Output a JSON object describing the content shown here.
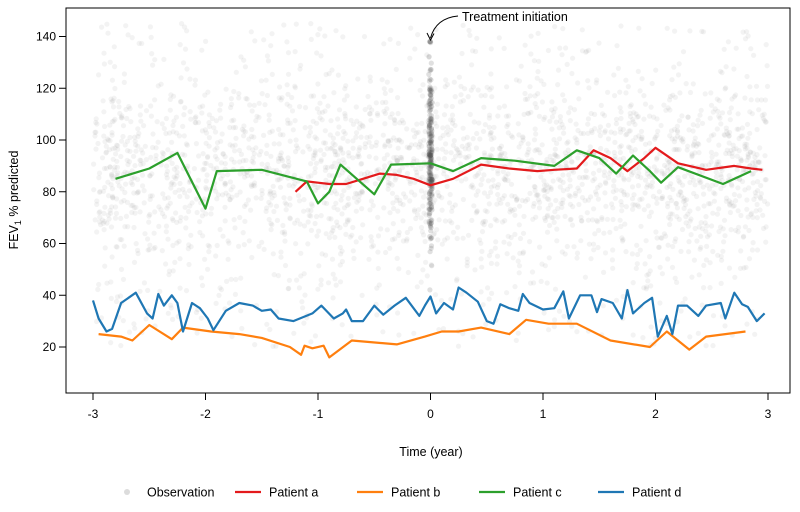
{
  "chart_data": {
    "type": "line",
    "xlabel": "Time (year)",
    "ylabel_main": "FEV",
    "ylabel_sub": "1",
    "ylabel_rest": " % predicted",
    "xlim": [
      -3.25,
      3.05
    ],
    "ylim": [
      8,
      150
    ],
    "x_ticks": [
      -3,
      -2,
      -1,
      0,
      1,
      2,
      3
    ],
    "x_tick_labels": [
      "-3",
      "-2",
      "-1",
      "0",
      "1",
      "2",
      "3"
    ],
    "y_ticks": [
      20,
      40,
      60,
      80,
      100,
      120,
      140
    ],
    "y_tick_labels": [
      "20",
      "40",
      "60",
      "80",
      "100",
      "120",
      "140"
    ],
    "annotation": {
      "text": "Treatment initiation",
      "x": 0,
      "y": 142
    },
    "observation": {
      "name": "Observation",
      "color": "#9a9a9a",
      "description_range": {
        "x": [
          -3,
          3
        ],
        "y": [
          12,
          145
        ]
      }
    },
    "series": [
      {
        "name": "Patient a",
        "color": "#e31a1c",
        "x": [
          -1.2,
          -1.1,
          -1.0,
          -0.9,
          -0.75,
          -0.6,
          -0.45,
          -0.3,
          -0.15,
          0.0,
          0.2,
          0.45,
          0.7,
          0.95,
          1.1,
          1.3,
          1.45,
          1.6,
          1.75,
          1.9,
          2.0,
          2.2,
          2.45,
          2.7,
          2.85,
          2.95
        ],
        "y": [
          80,
          84,
          83.5,
          83,
          83,
          85,
          87,
          86.5,
          85,
          82.5,
          85,
          90.5,
          89,
          88,
          88.5,
          89,
          96,
          93,
          88,
          93,
          97,
          91,
          88.5,
          90,
          89,
          88.5
        ]
      },
      {
        "name": "Patient b",
        "color": "#ff7f0e",
        "x": [
          -2.95,
          -2.75,
          -2.65,
          -2.5,
          -2.3,
          -2.2,
          -1.95,
          -1.7,
          -1.5,
          -1.25,
          -1.15,
          -1.12,
          -1.05,
          -0.95,
          -0.9,
          -0.7,
          -0.3,
          -0.05,
          0.1,
          0.25,
          0.45,
          0.7,
          0.85,
          1.05,
          1.3,
          1.6,
          1.95,
          2.1,
          2.3,
          2.45,
          2.8
        ],
        "y": [
          25,
          24,
          22.5,
          28.5,
          23,
          27.5,
          26,
          25,
          23.5,
          20,
          17,
          20.5,
          19.5,
          20.5,
          16,
          22.5,
          21,
          24,
          26,
          26,
          27.5,
          25,
          30.5,
          29,
          29,
          22.5,
          20,
          26,
          19,
          24,
          26
        ]
      },
      {
        "name": "Patient c",
        "color": "#2ca02c",
        "x": [
          -2.8,
          -2.5,
          -2.25,
          -2.0,
          -1.9,
          -1.5,
          -1.1,
          -1.0,
          -0.9,
          -0.8,
          -0.5,
          -0.35,
          0.0,
          0.2,
          0.45,
          0.75,
          1.1,
          1.3,
          1.5,
          1.65,
          1.8,
          1.95,
          2.05,
          2.2,
          2.6,
          2.85
        ],
        "y": [
          85,
          89,
          95,
          73.5,
          88,
          88.5,
          84,
          75.5,
          80,
          90.5,
          79,
          90.5,
          91,
          88,
          93,
          92,
          90,
          96,
          93,
          87,
          94,
          88,
          83.5,
          89.5,
          83,
          88
        ]
      },
      {
        "name": "Patient d",
        "color": "#1f77b4",
        "x": [
          -3.0,
          -2.95,
          -2.88,
          -2.83,
          -2.75,
          -2.62,
          -2.52,
          -2.47,
          -2.42,
          -2.37,
          -2.3,
          -2.25,
          -2.2,
          -2.12,
          -2.05,
          -1.98,
          -1.93,
          -1.82,
          -1.7,
          -1.58,
          -1.5,
          -1.42,
          -1.35,
          -1.22,
          -1.05,
          -0.97,
          -0.86,
          -0.78,
          -0.75,
          -0.7,
          -0.6,
          -0.5,
          -0.42,
          -0.32,
          -0.22,
          -0.1,
          -0.05,
          0.0,
          0.05,
          0.12,
          0.2,
          0.25,
          0.32,
          0.42,
          0.5,
          0.56,
          0.62,
          0.7,
          0.78,
          0.82,
          0.88,
          1.0,
          1.1,
          1.18,
          1.23,
          1.33,
          1.43,
          1.48,
          1.52,
          1.62,
          1.7,
          1.75,
          1.8,
          1.9,
          1.97,
          2.02,
          2.1,
          2.15,
          2.2,
          2.28,
          2.38,
          2.45,
          2.58,
          2.62,
          2.7,
          2.77,
          2.82,
          2.9,
          2.97
        ],
        "y": [
          38,
          31,
          26,
          27,
          37,
          41,
          33,
          31,
          40.5,
          36,
          40,
          37,
          26,
          37,
          35,
          31,
          26.5,
          34,
          37,
          36,
          34,
          34.5,
          31,
          30,
          33,
          36,
          31,
          33,
          34.5,
          30,
          30,
          36,
          32.5,
          36,
          39,
          32,
          36,
          39.5,
          33,
          37,
          34.5,
          43,
          41,
          37.5,
          30,
          29,
          36.5,
          35,
          34,
          40.5,
          37,
          34.5,
          35,
          41.5,
          31,
          40,
          40,
          33.5,
          38.5,
          37,
          31,
          42,
          33,
          37,
          39,
          24,
          32,
          25,
          36,
          36,
          32,
          36,
          37,
          31,
          41,
          36.5,
          35.5,
          30,
          33
        ]
      }
    ],
    "legend": [
      "Observation",
      "Patient a",
      "Patient b",
      "Patient c",
      "Patient d"
    ],
    "legend_placement": "bottom",
    "grid": false
  }
}
